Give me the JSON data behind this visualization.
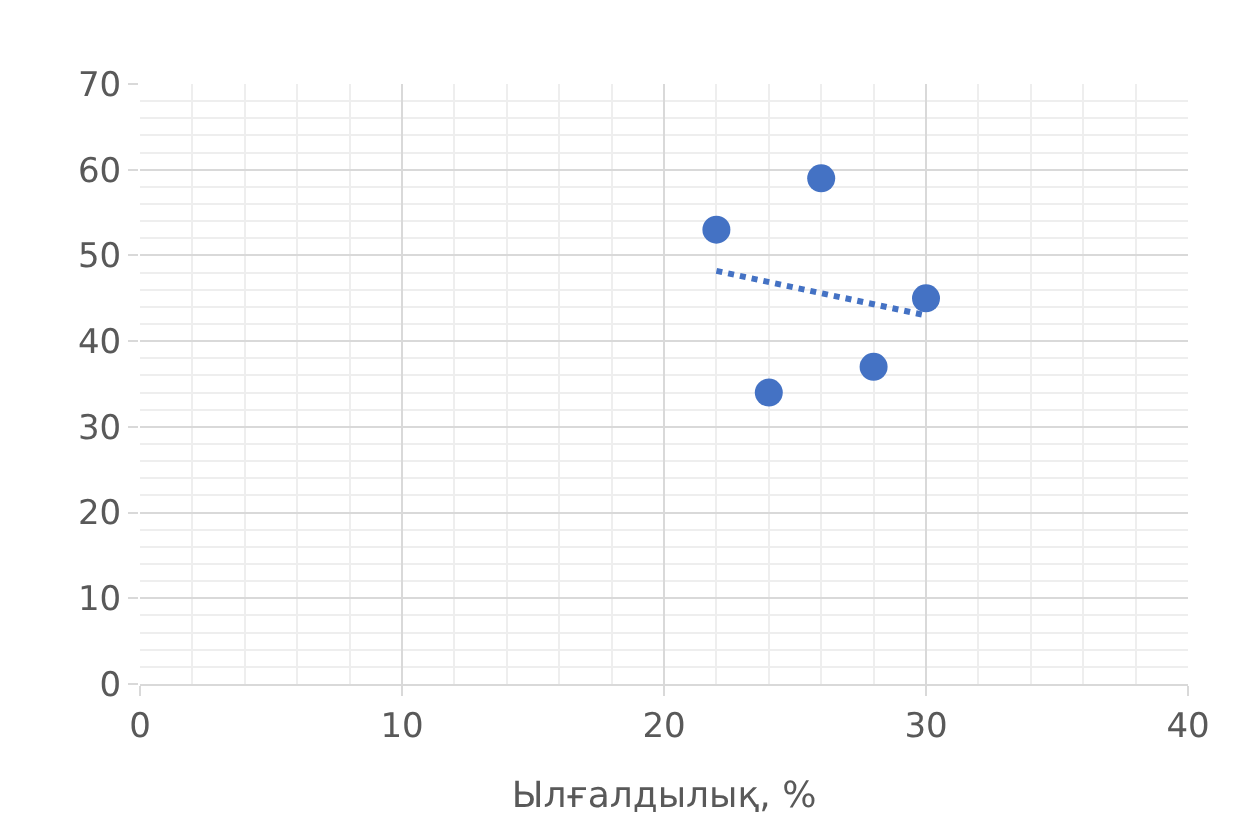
{
  "chart_data": {
    "type": "scatter",
    "xlabel": "Ылғалдылық, %",
    "xlim": [
      0,
      40
    ],
    "xticks": [
      0,
      10,
      20,
      30,
      40
    ],
    "ylim": [
      0,
      70
    ],
    "yticks": [
      0,
      10,
      20,
      30,
      40,
      50,
      60,
      70
    ],
    "grid": true,
    "marker": "circle",
    "series": [
      {
        "color": "#4472c4",
        "x": [
          22,
          24,
          26,
          28,
          30
        ],
        "values": [
          53,
          34,
          59,
          37,
          45
        ]
      },
      {
        "type": "line",
        "color": "#4472c4",
        "x": [
          22,
          30
        ],
        "values": [
          48.2,
          43.0
        ],
        "line_style": "dotted",
        "marker": "none"
      }
    ]
  }
}
